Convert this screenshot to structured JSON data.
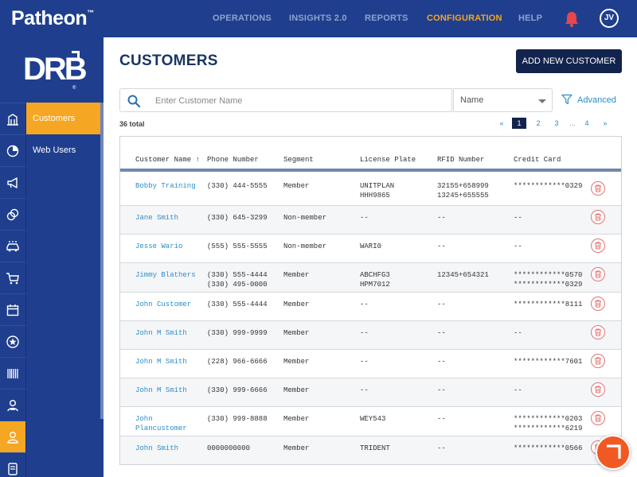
{
  "header": {
    "brand": "Patheon",
    "brand_mark": "™",
    "nav": [
      {
        "label": "OPERATIONS",
        "active": false
      },
      {
        "label": "INSIGHTS 2.0",
        "active": false
      },
      {
        "label": "REPORTS",
        "active": false
      },
      {
        "label": "CONFIGURATION",
        "active": true
      },
      {
        "label": "HELP",
        "active": false
      }
    ],
    "notification_icon": "bell-icon",
    "user_initials": "JV"
  },
  "sidebar": {
    "logo_text": "DRB",
    "logo_mark": "®",
    "rail_icons": [
      "building-icon",
      "pie-chart-icon",
      "megaphone-icon",
      "coins-icon",
      "car-wash-icon",
      "cart-icon",
      "calendar-icon",
      "star-badge-icon",
      "barcode-icon",
      "user-badge-icon",
      "user-icon",
      "device-icon"
    ],
    "active_rail_index": 10,
    "items": [
      {
        "label": "Customers",
        "active": true
      },
      {
        "label": "Web Users",
        "active": false
      }
    ]
  },
  "main": {
    "title": "CUSTOMERS",
    "add_button": "ADD NEW CUSTOMER",
    "search": {
      "placeholder": "Enter Customer Name",
      "value": ""
    },
    "search_field_select": "Name",
    "advanced_label": "Advanced",
    "total": "36 total",
    "pagination": {
      "prev": "«",
      "pages": [
        "1",
        "2",
        "3"
      ],
      "ellipsis": "...",
      "last": "4",
      "next": "»",
      "current": "1"
    },
    "columns": [
      "Customer Name ↑",
      "Phone Number",
      "Segment",
      "License Plate",
      "RFID Number",
      "Credit Card"
    ],
    "rows": [
      {
        "name": "Bobby Training",
        "phone": "(330) 444-5555",
        "segment": "Member",
        "plate": "UNITPLAN\nHHH9865",
        "rfid": "32155+658999\n13245+655555",
        "card": "************0329"
      },
      {
        "name": "Jane Smith",
        "phone": "(330) 645-3299",
        "segment": "Non-member",
        "plate": "--",
        "rfid": "--",
        "card": "--"
      },
      {
        "name": "Jesse Wario",
        "phone": "(555) 555-5555",
        "segment": "Non-member",
        "plate": "WARI0",
        "rfid": "--",
        "card": "--"
      },
      {
        "name": "Jimmy Blathers",
        "phone": "(330) 555-4444\n(330) 495-0000",
        "segment": "Member",
        "plate": "ABCHFG3\nHPM7012",
        "rfid": "12345+654321",
        "card": "************0570\n************0329"
      },
      {
        "name": "John Customer",
        "phone": "(330) 555-4444",
        "segment": "Member",
        "plate": "--",
        "rfid": "--",
        "card": "************8111"
      },
      {
        "name": "John M Smith",
        "phone": "(330) 999-9999",
        "segment": "Member",
        "plate": "--",
        "rfid": "--",
        "card": "--"
      },
      {
        "name": "John M Smith",
        "phone": "(228) 966-6666",
        "segment": "Member",
        "plate": "--",
        "rfid": "--",
        "card": "************7601"
      },
      {
        "name": "John M Smith",
        "phone": "(330) 999-6666",
        "segment": "Member",
        "plate": "--",
        "rfid": "--",
        "card": "--"
      },
      {
        "name": "John\nPlancustomer",
        "phone": "(330) 999-8888",
        "segment": "Member",
        "plate": "WEY543",
        "rfid": "--",
        "card": "************0203\n************6219"
      },
      {
        "name": "John Smith",
        "phone": "0000000000",
        "segment": "Member",
        "plate": "TRIDENT",
        "rfid": "--",
        "card": "************0566"
      }
    ],
    "row_action_icon": "trash-icon",
    "chat_icon": "chat-icon",
    "accent_color": "#f5a623",
    "brand_color": "#1f3f8e",
    "link_color": "#2a8fc7"
  }
}
